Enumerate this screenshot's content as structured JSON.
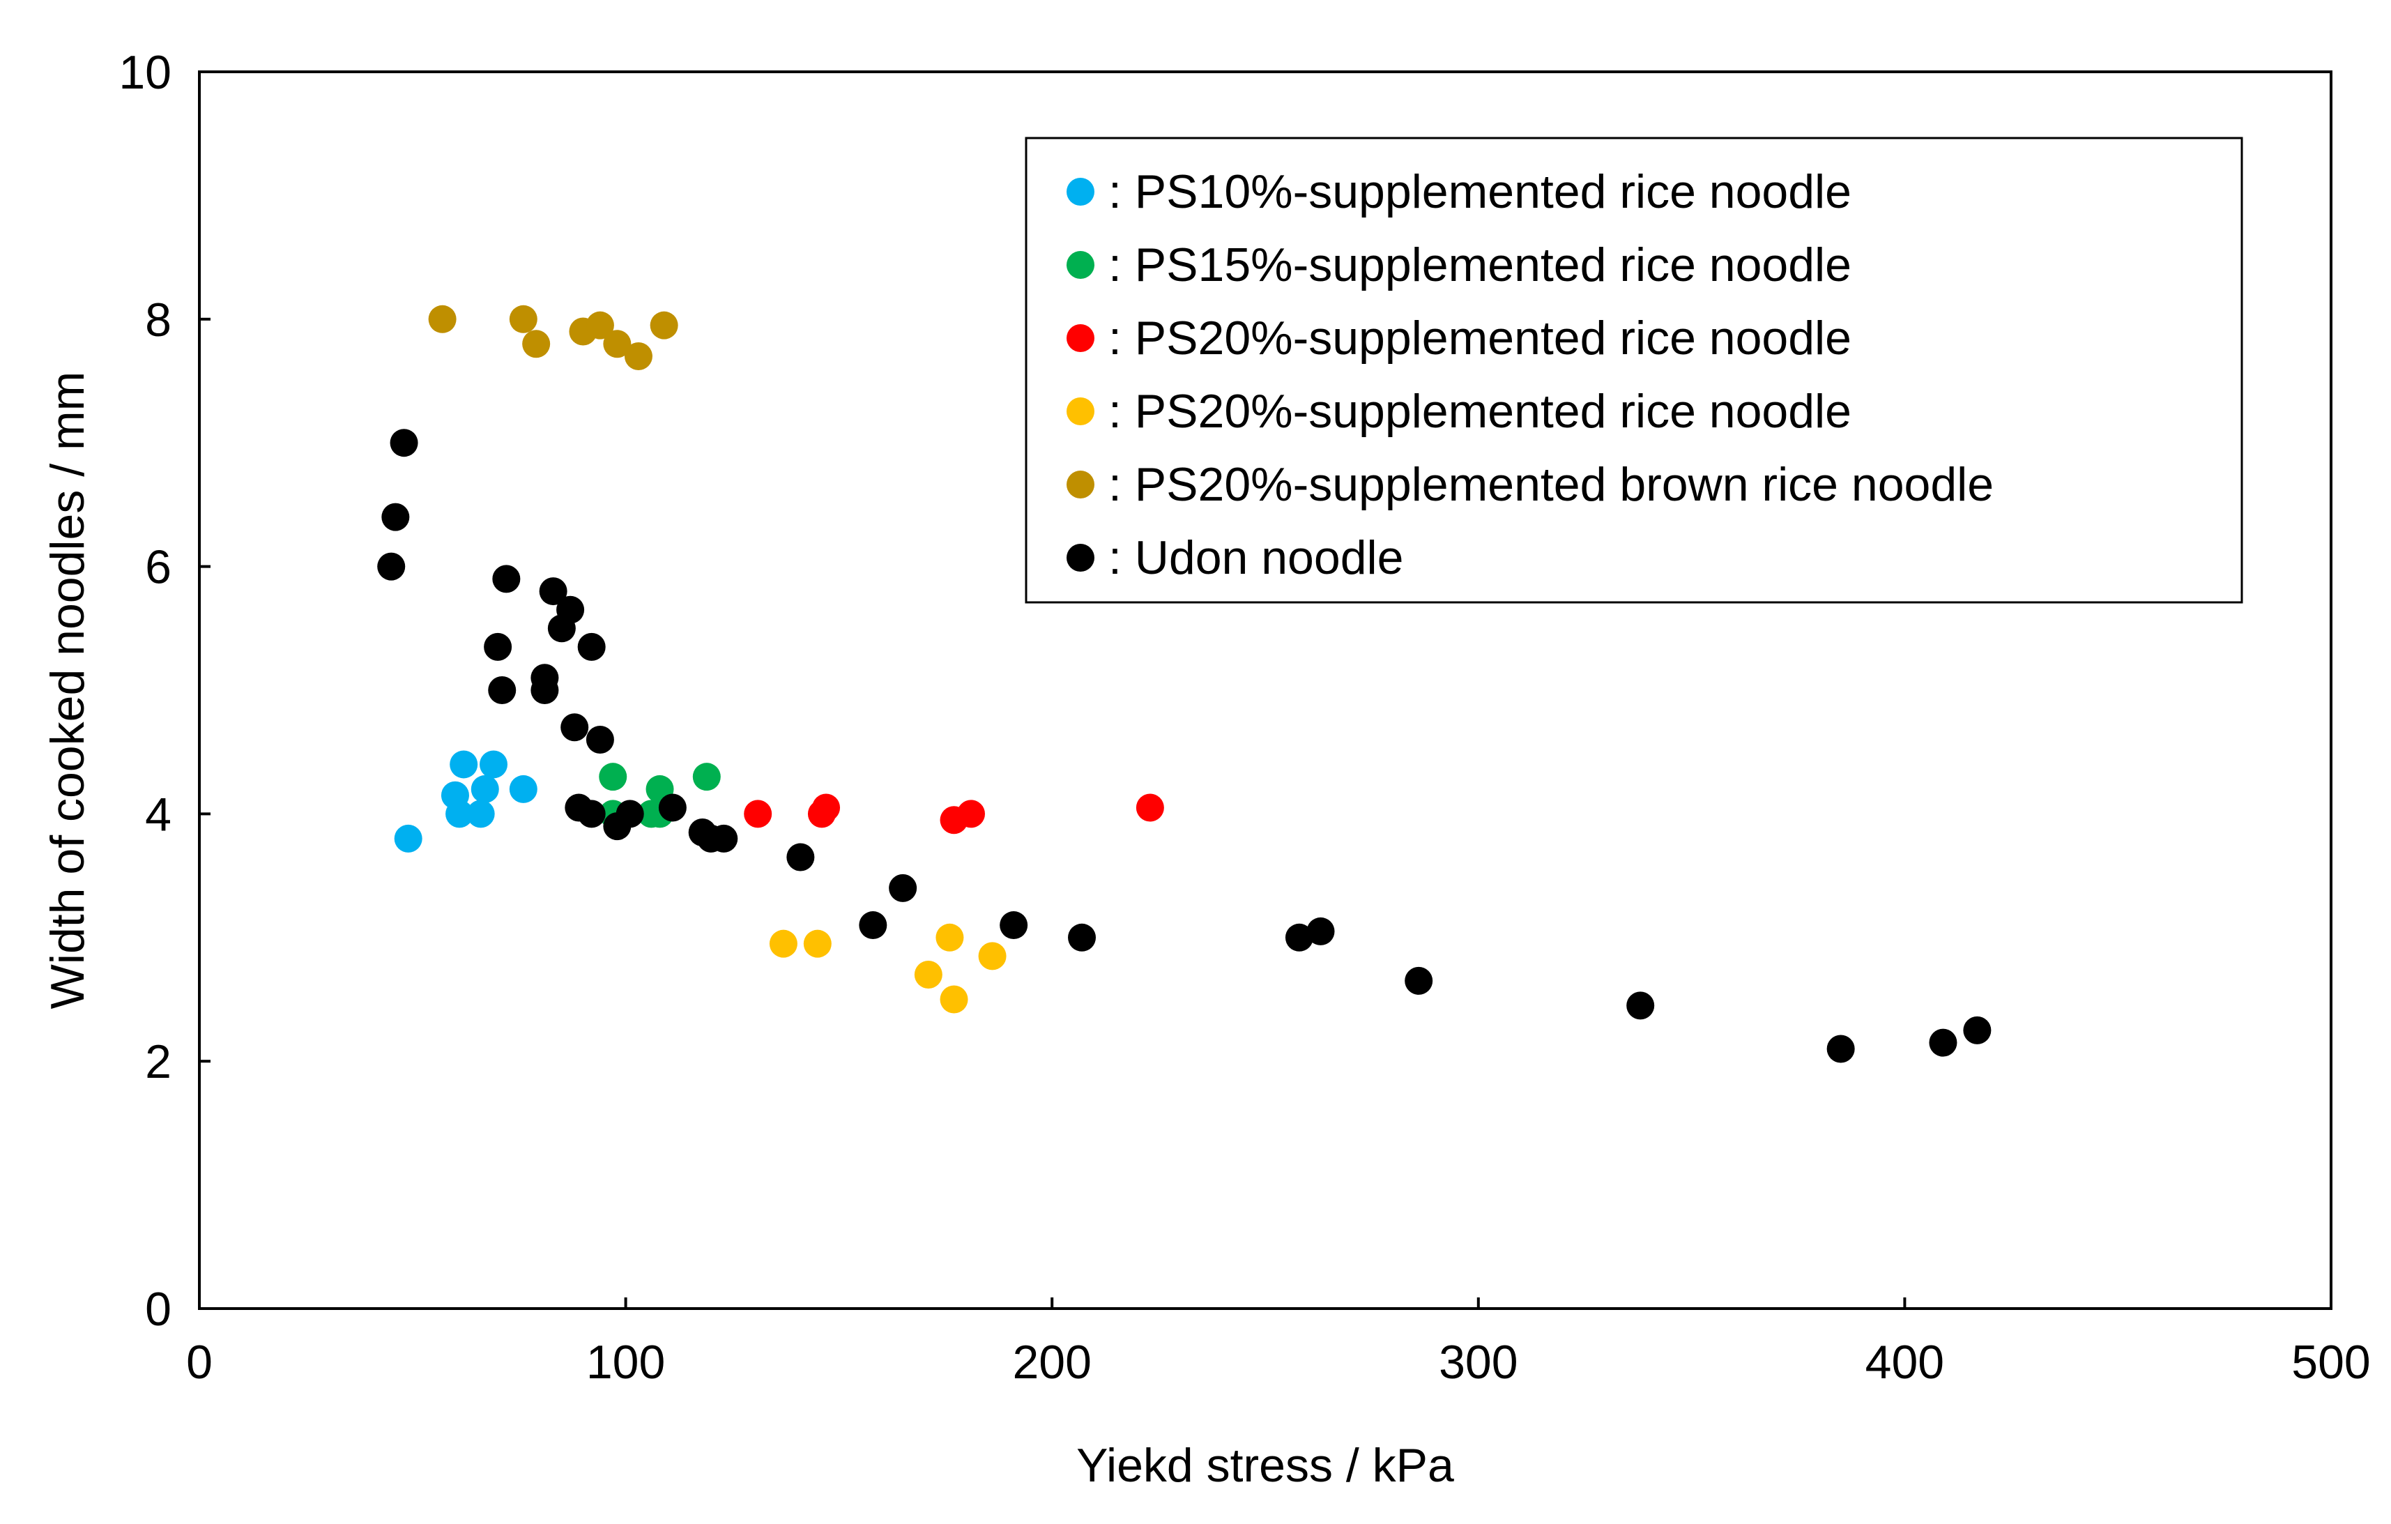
{
  "chart_data": {
    "type": "scatter",
    "xlabel": "Yiekd stress / kPa",
    "ylabel": "Width of cooked noodles / mm",
    "xlim": [
      0,
      500
    ],
    "ylim": [
      0,
      10
    ],
    "xticks": [
      "0",
      "100",
      "200",
      "300",
      "400",
      "500"
    ],
    "yticks": [
      "0",
      "2",
      "4",
      "6",
      "8",
      "10"
    ],
    "grid": false,
    "legend_position": "top-right",
    "series": [
      {
        "name": "PS10%-supplemented rice noodle",
        "legend_label": ": PS10%-supplemented rice noodle",
        "color": "#00B0F0",
        "points": [
          [
            49,
            3.8
          ],
          [
            60,
            4.15
          ],
          [
            61,
            4.0
          ],
          [
            62,
            4.4
          ],
          [
            66,
            4.0
          ],
          [
            67,
            4.2
          ],
          [
            69,
            4.4
          ],
          [
            76,
            4.2
          ]
        ]
      },
      {
        "name": "PS15%-supplemented rice noodle",
        "legend_label": ": PS15%-supplemented rice noodle",
        "color": "#00B050",
        "points": [
          [
            97,
            4.3
          ],
          [
            97,
            4.0
          ],
          [
            106,
            4.0
          ],
          [
            108,
            4.0
          ],
          [
            108,
            4.2
          ],
          [
            119,
            4.3
          ]
        ]
      },
      {
        "name": "PS20%-supplemented rice noodle",
        "legend_label": ": PS20%-supplemented rice noodle",
        "color": "#FF0000",
        "points": [
          [
            131,
            4.0
          ],
          [
            146,
            4.0
          ],
          [
            147,
            4.05
          ],
          [
            177,
            3.95
          ],
          [
            181,
            4.0
          ],
          [
            223,
            4.05
          ]
        ]
      },
      {
        "name": "PS20%-supplemented rice noodle",
        "legend_label": ": PS20%-supplemented rice noodle",
        "color": "#FFC000",
        "points": [
          [
            137,
            2.95
          ],
          [
            145,
            2.95
          ],
          [
            171,
            2.7
          ],
          [
            176,
            3.0
          ],
          [
            177,
            2.5
          ],
          [
            186,
            2.85
          ]
        ]
      },
      {
        "name": "PS20%-supplemented brown rice noodle",
        "legend_label": ": PS20%-supplemented brown rice noodle",
        "color": "#BF8F00",
        "points": [
          [
            57,
            8.0
          ],
          [
            76,
            8.0
          ],
          [
            79,
            7.8
          ],
          [
            90,
            7.9
          ],
          [
            94,
            7.95
          ],
          [
            98,
            7.8
          ],
          [
            103,
            7.7
          ],
          [
            109,
            7.95
          ]
        ]
      },
      {
        "name": "Udon noodle",
        "legend_label": ": Udon noodle",
        "color": "#000000",
        "points": [
          [
            45,
            6.0
          ],
          [
            46,
            6.4
          ],
          [
            48,
            7.0
          ],
          [
            70,
            5.35
          ],
          [
            71,
            5.0
          ],
          [
            72,
            5.9
          ],
          [
            81,
            5.1
          ],
          [
            81,
            5.0
          ],
          [
            83,
            5.8
          ],
          [
            85,
            5.5
          ],
          [
            87,
            5.65
          ],
          [
            88,
            4.7
          ],
          [
            89,
            4.05
          ],
          [
            92,
            5.35
          ],
          [
            92,
            4.0
          ],
          [
            94,
            4.6
          ],
          [
            98,
            3.9
          ],
          [
            101,
            4.0
          ],
          [
            111,
            4.05
          ],
          [
            118,
            3.85
          ],
          [
            120,
            3.8
          ],
          [
            123,
            3.8
          ],
          [
            141,
            3.65
          ],
          [
            158,
            3.1
          ],
          [
            165,
            3.4
          ],
          [
            191,
            3.1
          ],
          [
            207,
            3.0
          ],
          [
            258,
            3.0
          ],
          [
            263,
            3.05
          ],
          [
            286,
            2.65
          ],
          [
            338,
            2.45
          ],
          [
            385,
            2.1
          ],
          [
            409,
            2.15
          ],
          [
            417,
            2.25
          ]
        ]
      }
    ]
  }
}
